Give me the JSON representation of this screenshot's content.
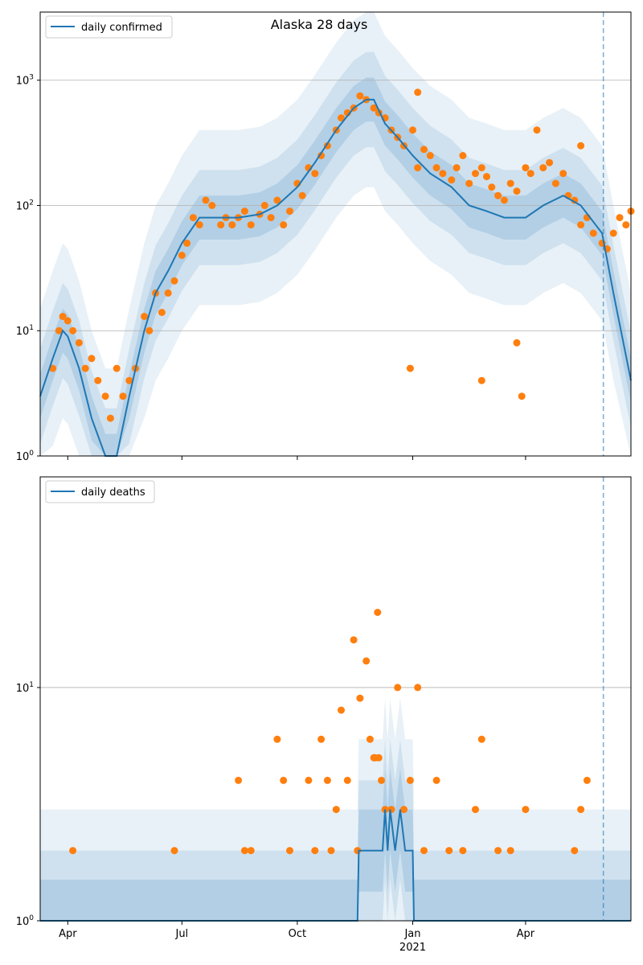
{
  "chart_data": [
    {
      "type": "line",
      "title": "Alaska 28 days",
      "legend": [
        "daily confirmed"
      ],
      "legend_position": "top-left",
      "yscale": "log",
      "ylim": [
        1,
        3500
      ],
      "yticks": [
        {
          "label": "10",
          "exp": "0",
          "value": 1
        },
        {
          "label": "10",
          "exp": "1",
          "value": 10
        },
        {
          "label": "10",
          "exp": "2",
          "value": 100
        },
        {
          "label": "10",
          "exp": "3",
          "value": 1000
        }
      ],
      "xlim": [
        "2020-03-10",
        "2021-06-24"
      ],
      "forecast_start": "2021-06-02",
      "grid": "horizontal",
      "colors": {
        "line": "#1f77b4",
        "points": "#ff7f0e",
        "band": "#1f77b4",
        "forecast": "#1f77b4"
      },
      "series": [
        {
          "name": "daily confirmed",
          "kind": "smoothed line",
          "x": [
            "2020-03-10",
            "2020-03-20",
            "2020-03-28",
            "2020-04-01",
            "2020-04-10",
            "2020-04-20",
            "2020-05-01",
            "2020-05-10",
            "2020-05-20",
            "2020-06-01",
            "2020-06-10",
            "2020-06-20",
            "2020-07-01",
            "2020-07-15",
            "2020-08-01",
            "2020-08-15",
            "2020-09-01",
            "2020-09-15",
            "2020-10-01",
            "2020-10-15",
            "2020-11-01",
            "2020-11-15",
            "2020-11-25",
            "2020-12-01",
            "2020-12-10",
            "2020-12-20",
            "2021-01-01",
            "2021-01-15",
            "2021-02-01",
            "2021-02-15",
            "2021-03-01",
            "2021-03-15",
            "2021-04-01",
            "2021-04-15",
            "2021-05-01",
            "2021-05-15",
            "2021-06-01",
            "2021-06-10",
            "2021-06-24"
          ],
          "y": [
            3,
            6,
            10,
            9,
            5,
            2,
            1,
            1,
            3,
            10,
            20,
            30,
            50,
            80,
            80,
            80,
            85,
            100,
            140,
            220,
            400,
            600,
            700,
            700,
            450,
            350,
            250,
            180,
            140,
            100,
            90,
            80,
            80,
            100,
            120,
            100,
            60,
            20,
            4
          ]
        },
        {
          "name": "",
          "kind": "observed points",
          "x": [
            "2020-03-20",
            "2020-03-25",
            "2020-03-28",
            "2020-04-01",
            "2020-04-05",
            "2020-04-10",
            "2020-04-15",
            "2020-04-20",
            "2020-04-25",
            "2020-05-01",
            "2020-05-05",
            "2020-05-10",
            "2020-05-15",
            "2020-05-20",
            "2020-05-25",
            "2020-06-01",
            "2020-06-05",
            "2020-06-10",
            "2020-06-15",
            "2020-06-20",
            "2020-06-25",
            "2020-07-01",
            "2020-07-05",
            "2020-07-10",
            "2020-07-15",
            "2020-07-20",
            "2020-07-25",
            "2020-08-01",
            "2020-08-05",
            "2020-08-10",
            "2020-08-15",
            "2020-08-20",
            "2020-08-25",
            "2020-09-01",
            "2020-09-05",
            "2020-09-10",
            "2020-09-15",
            "2020-09-20",
            "2020-09-25",
            "2020-10-01",
            "2020-10-05",
            "2020-10-10",
            "2020-10-15",
            "2020-10-20",
            "2020-10-25",
            "2020-11-01",
            "2020-11-05",
            "2020-11-10",
            "2020-11-15",
            "2020-11-20",
            "2020-11-25",
            "2020-12-01",
            "2020-12-05",
            "2020-12-10",
            "2020-12-15",
            "2020-12-20",
            "2020-12-25",
            "2021-01-01",
            "2021-01-05",
            "2021-01-10",
            "2021-01-15",
            "2021-01-20",
            "2021-01-25",
            "2021-02-01",
            "2021-02-05",
            "2021-02-10",
            "2021-02-15",
            "2021-02-20",
            "2021-02-25",
            "2021-03-01",
            "2021-03-05",
            "2021-03-10",
            "2021-03-15",
            "2021-03-20",
            "2021-03-25",
            "2021-04-01",
            "2021-04-05",
            "2021-04-10",
            "2021-04-15",
            "2021-04-20",
            "2021-04-25",
            "2021-05-01",
            "2021-05-05",
            "2021-05-10",
            "2021-05-15",
            "2021-05-20",
            "2021-05-25",
            "2021-06-01",
            "2021-06-05",
            "2021-06-10",
            "2021-06-15",
            "2021-06-20",
            "2021-06-24",
            "2020-12-30",
            "2021-02-25",
            "2021-03-25",
            "2021-03-29",
            "2021-05-15",
            "2021-01-05"
          ],
          "y": [
            5,
            10,
            13,
            12,
            10,
            8,
            5,
            6,
            4,
            3,
            2,
            5,
            3,
            4,
            5,
            13,
            10,
            20,
            14,
            20,
            25,
            40,
            50,
            80,
            70,
            110,
            100,
            70,
            80,
            70,
            80,
            90,
            70,
            85,
            100,
            80,
            110,
            70,
            90,
            150,
            120,
            200,
            180,
            250,
            300,
            400,
            500,
            550,
            600,
            750,
            700,
            600,
            550,
            500,
            400,
            350,
            300,
            400,
            200,
            280,
            250,
            200,
            180,
            160,
            200,
            250,
            150,
            180,
            200,
            170,
            140,
            120,
            110,
            150,
            130,
            200,
            180,
            400,
            200,
            220,
            150,
            180,
            120,
            110,
            70,
            80,
            60,
            50,
            45,
            60,
            80,
            70,
            90,
            5,
            4,
            8,
            3,
            300,
            800
          ]
        }
      ],
      "confidence_bands": [
        "50%",
        "80%",
        "95%"
      ]
    },
    {
      "type": "line",
      "title": "",
      "legend": [
        "daily deaths"
      ],
      "legend_position": "top-left",
      "yscale": "log",
      "ylim": [
        1,
        80
      ],
      "yticks": [
        {
          "label": "10",
          "exp": "0",
          "value": 1
        },
        {
          "label": "10",
          "exp": "1",
          "value": 10
        }
      ],
      "xlim": [
        "2020-03-10",
        "2021-06-24"
      ],
      "xticks": [
        {
          "label": "Apr",
          "date": "2020-04-01"
        },
        {
          "label": "Jul",
          "date": "2020-07-01"
        },
        {
          "label": "Oct",
          "date": "2020-10-01"
        },
        {
          "label": "Jan",
          "date": "2021-01-01"
        },
        {
          "label": "Apr",
          "date": "2021-04-01"
        }
      ],
      "xtick_year": "2021",
      "forecast_start": "2021-06-02",
      "grid": "horizontal",
      "colors": {
        "line": "#1f77b4",
        "points": "#ff7f0e",
        "band": "#1f77b4",
        "forecast": "#1f77b4"
      },
      "series": [
        {
          "name": "daily deaths",
          "kind": "smoothed line",
          "x": [
            "2020-03-10",
            "2020-11-18",
            "2020-11-19",
            "2020-12-08",
            "2020-12-10",
            "2020-12-12",
            "2020-12-14",
            "2020-12-18",
            "2020-12-22",
            "2020-12-26",
            "2021-01-01",
            "2021-01-02",
            "2021-06-24"
          ],
          "y": [
            1,
            1,
            2,
            2,
            3,
            2,
            3,
            2,
            3,
            2,
            2,
            1,
            1
          ]
        },
        {
          "name": "",
          "kind": "observed points",
          "x": [
            "2020-04-05",
            "2020-06-25",
            "2020-08-15",
            "2020-08-20",
            "2020-08-25",
            "2020-09-15",
            "2020-09-20",
            "2020-09-25",
            "2020-10-10",
            "2020-10-15",
            "2020-10-20",
            "2020-10-25",
            "2020-11-01",
            "2020-11-05",
            "2020-11-10",
            "2020-11-15",
            "2020-11-20",
            "2020-11-25",
            "2020-11-28",
            "2020-12-01",
            "2020-12-04",
            "2020-12-07",
            "2020-12-10",
            "2020-12-15",
            "2020-12-20",
            "2020-12-25",
            "2020-12-30",
            "2021-01-05",
            "2021-01-10",
            "2021-01-20",
            "2021-01-30",
            "2021-02-10",
            "2021-02-20",
            "2021-03-10",
            "2021-03-20",
            "2021-04-01",
            "2021-05-10",
            "2021-05-15",
            "2021-05-20",
            "2020-10-28",
            "2020-11-18",
            "2020-12-02",
            "2020-12-05",
            "2021-02-25"
          ],
          "y": [
            2,
            2,
            4,
            2,
            2,
            6,
            4,
            2,
            4,
            2,
            6,
            4,
            3,
            8,
            4,
            16,
            9,
            13,
            6,
            5,
            21,
            4,
            3,
            3,
            10,
            3,
            4,
            10,
            2,
            4,
            2,
            2,
            3,
            2,
            2,
            3,
            2,
            3,
            4,
            2,
            2,
            5,
            5,
            6
          ]
        }
      ],
      "confidence_bands": [
        "50%",
        "80%",
        "95%"
      ]
    }
  ]
}
